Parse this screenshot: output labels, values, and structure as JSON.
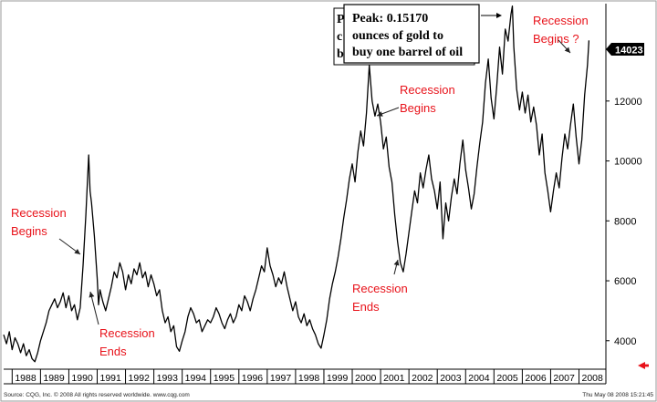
{
  "chart_data": {
    "type": "line",
    "title": "",
    "xlabel": "",
    "ylabel": "",
    "ylim": [
      3050,
      15250
    ],
    "xlim": [
      1987.7,
      2008.95
    ],
    "grid": false,
    "y_ticks": [
      4000,
      6000,
      8000,
      10000,
      12000
    ],
    "x_ticks": [
      "1988",
      "1989",
      "1990",
      "1991",
      "1992",
      "1993",
      "1994",
      "1995",
      "1996",
      "1997",
      "1998",
      "1999",
      "2000",
      "2001",
      "2002",
      "2003",
      "2004",
      "2005",
      "2006",
      "2007",
      "2008"
    ],
    "last_value": "14023",
    "series": [
      {
        "values": [
          [
            1987.7,
            4200
          ],
          [
            1987.8,
            3900
          ],
          [
            1987.9,
            4300
          ],
          [
            1988.0,
            3700
          ],
          [
            1988.1,
            4100
          ],
          [
            1988.2,
            3900
          ],
          [
            1988.3,
            3600
          ],
          [
            1988.4,
            3900
          ],
          [
            1988.5,
            3500
          ],
          [
            1988.6,
            3700
          ],
          [
            1988.7,
            3400
          ],
          [
            1988.8,
            3300
          ],
          [
            1988.9,
            3600
          ],
          [
            1989.0,
            4000
          ],
          [
            1989.1,
            4300
          ],
          [
            1989.2,
            4600
          ],
          [
            1989.3,
            5000
          ],
          [
            1989.4,
            5200
          ],
          [
            1989.5,
            5400
          ],
          [
            1989.6,
            5100
          ],
          [
            1989.7,
            5300
          ],
          [
            1989.8,
            5600
          ],
          [
            1989.9,
            5100
          ],
          [
            1990.0,
            5500
          ],
          [
            1990.1,
            5000
          ],
          [
            1990.2,
            5200
          ],
          [
            1990.3,
            4700
          ],
          [
            1990.4,
            5100
          ],
          [
            1990.5,
            6500
          ],
          [
            1990.6,
            8200
          ],
          [
            1990.7,
            10200
          ],
          [
            1990.75,
            9000
          ],
          [
            1990.8,
            8600
          ],
          [
            1990.9,
            7500
          ],
          [
            1991.0,
            6100
          ],
          [
            1991.05,
            5200
          ],
          [
            1991.1,
            5700
          ],
          [
            1991.2,
            5300
          ],
          [
            1991.3,
            5000
          ],
          [
            1991.4,
            5400
          ],
          [
            1991.5,
            5800
          ],
          [
            1991.6,
            6300
          ],
          [
            1991.7,
            6100
          ],
          [
            1991.8,
            6600
          ],
          [
            1991.9,
            6300
          ],
          [
            1992.0,
            5700
          ],
          [
            1992.1,
            6200
          ],
          [
            1992.2,
            5900
          ],
          [
            1992.3,
            6400
          ],
          [
            1992.4,
            6200
          ],
          [
            1992.5,
            6600
          ],
          [
            1992.6,
            6100
          ],
          [
            1992.7,
            6300
          ],
          [
            1992.8,
            5800
          ],
          [
            1992.9,
            6200
          ],
          [
            1993.0,
            5900
          ],
          [
            1993.1,
            5500
          ],
          [
            1993.2,
            5700
          ],
          [
            1993.3,
            5000
          ],
          [
            1993.4,
            4600
          ],
          [
            1993.5,
            4800
          ],
          [
            1993.6,
            4300
          ],
          [
            1993.7,
            4500
          ],
          [
            1993.8,
            3800
          ],
          [
            1993.9,
            3650
          ],
          [
            1994.0,
            4000
          ],
          [
            1994.1,
            4300
          ],
          [
            1994.2,
            4800
          ],
          [
            1994.3,
            5100
          ],
          [
            1994.4,
            4900
          ],
          [
            1994.5,
            4600
          ],
          [
            1994.6,
            4700
          ],
          [
            1994.7,
            4300
          ],
          [
            1994.8,
            4500
          ],
          [
            1994.9,
            4700
          ],
          [
            1995.0,
            4600
          ],
          [
            1995.1,
            4800
          ],
          [
            1995.2,
            5100
          ],
          [
            1995.3,
            4900
          ],
          [
            1995.4,
            4600
          ],
          [
            1995.5,
            4400
          ],
          [
            1995.6,
            4700
          ],
          [
            1995.7,
            4900
          ],
          [
            1995.8,
            4600
          ],
          [
            1995.9,
            4800
          ],
          [
            1996.0,
            5200
          ],
          [
            1996.1,
            5000
          ],
          [
            1996.2,
            5500
          ],
          [
            1996.3,
            5300
          ],
          [
            1996.4,
            5000
          ],
          [
            1996.5,
            5400
          ],
          [
            1996.6,
            5700
          ],
          [
            1996.7,
            6100
          ],
          [
            1996.8,
            6500
          ],
          [
            1996.9,
            6300
          ],
          [
            1997.0,
            7100
          ],
          [
            1997.1,
            6500
          ],
          [
            1997.2,
            6200
          ],
          [
            1997.3,
            5800
          ],
          [
            1997.4,
            6100
          ],
          [
            1997.5,
            5900
          ],
          [
            1997.6,
            6300
          ],
          [
            1997.7,
            5800
          ],
          [
            1997.8,
            5400
          ],
          [
            1997.9,
            5000
          ],
          [
            1998.0,
            5300
          ],
          [
            1998.1,
            4800
          ],
          [
            1998.2,
            4600
          ],
          [
            1998.3,
            4900
          ],
          [
            1998.4,
            4500
          ],
          [
            1998.5,
            4700
          ],
          [
            1998.6,
            4400
          ],
          [
            1998.7,
            4200
          ],
          [
            1998.8,
            3900
          ],
          [
            1998.9,
            3750
          ],
          [
            1999.0,
            4200
          ],
          [
            1999.1,
            4700
          ],
          [
            1999.2,
            5400
          ],
          [
            1999.3,
            5900
          ],
          [
            1999.4,
            6300
          ],
          [
            1999.5,
            6800
          ],
          [
            1999.6,
            7400
          ],
          [
            1999.7,
            8100
          ],
          [
            1999.8,
            8700
          ],
          [
            1999.9,
            9400
          ],
          [
            2000.0,
            9900
          ],
          [
            2000.1,
            9300
          ],
          [
            2000.2,
            10300
          ],
          [
            2000.3,
            11000
          ],
          [
            2000.4,
            10500
          ],
          [
            2000.5,
            11600
          ],
          [
            2000.6,
            13200
          ],
          [
            2000.7,
            12000
          ],
          [
            2000.8,
            11500
          ],
          [
            2000.9,
            11900
          ],
          [
            2001.0,
            11300
          ],
          [
            2001.1,
            10400
          ],
          [
            2001.2,
            10800
          ],
          [
            2001.3,
            9800
          ],
          [
            2001.4,
            9300
          ],
          [
            2001.5,
            8200
          ],
          [
            2001.6,
            7300
          ],
          [
            2001.7,
            6600
          ],
          [
            2001.8,
            6300
          ],
          [
            2001.9,
            6900
          ],
          [
            2002.0,
            7600
          ],
          [
            2002.1,
            8300
          ],
          [
            2002.2,
            9000
          ],
          [
            2002.3,
            8600
          ],
          [
            2002.4,
            9600
          ],
          [
            2002.5,
            9100
          ],
          [
            2002.6,
            9700
          ],
          [
            2002.7,
            10200
          ],
          [
            2002.8,
            9400
          ],
          [
            2002.9,
            9000
          ],
          [
            2003.0,
            8400
          ],
          [
            2003.1,
            9300
          ],
          [
            2003.2,
            7400
          ],
          [
            2003.3,
            8600
          ],
          [
            2003.4,
            8000
          ],
          [
            2003.5,
            8800
          ],
          [
            2003.6,
            9400
          ],
          [
            2003.7,
            8900
          ],
          [
            2003.8,
            9900
          ],
          [
            2003.9,
            10700
          ],
          [
            2004.0,
            9700
          ],
          [
            2004.1,
            9100
          ],
          [
            2004.2,
            8400
          ],
          [
            2004.3,
            8900
          ],
          [
            2004.4,
            9800
          ],
          [
            2004.5,
            10600
          ],
          [
            2004.6,
            11300
          ],
          [
            2004.7,
            12600
          ],
          [
            2004.8,
            13400
          ],
          [
            2004.9,
            12100
          ],
          [
            2005.0,
            11400
          ],
          [
            2005.1,
            12500
          ],
          [
            2005.2,
            13800
          ],
          [
            2005.3,
            12900
          ],
          [
            2005.4,
            14400
          ],
          [
            2005.5,
            14000
          ],
          [
            2005.6,
            14900
          ],
          [
            2005.65,
            15170
          ],
          [
            2005.7,
            13800
          ],
          [
            2005.8,
            12400
          ],
          [
            2005.9,
            11700
          ],
          [
            2006.0,
            12300
          ],
          [
            2006.1,
            11600
          ],
          [
            2006.2,
            12200
          ],
          [
            2006.3,
            11300
          ],
          [
            2006.4,
            11800
          ],
          [
            2006.5,
            11200
          ],
          [
            2006.6,
            10200
          ],
          [
            2006.7,
            10900
          ],
          [
            2006.8,
            9600
          ],
          [
            2006.9,
            9000
          ],
          [
            2007.0,
            8300
          ],
          [
            2007.1,
            9000
          ],
          [
            2007.2,
            9600
          ],
          [
            2007.3,
            9100
          ],
          [
            2007.4,
            10100
          ],
          [
            2007.5,
            10900
          ],
          [
            2007.6,
            10400
          ],
          [
            2007.7,
            11200
          ],
          [
            2007.8,
            11900
          ],
          [
            2007.9,
            10800
          ],
          [
            2008.0,
            9900
          ],
          [
            2008.1,
            10700
          ],
          [
            2008.2,
            12200
          ],
          [
            2008.3,
            13200
          ],
          [
            2008.35,
            14023
          ]
        ]
      }
    ],
    "annotations": [
      {
        "lines": [
          "Recession",
          "Begins"
        ]
      },
      {
        "lines": [
          "Recession",
          "Ends"
        ]
      },
      {
        "lines": [
          "Recession",
          "Begins"
        ]
      },
      {
        "lines": [
          "Recession",
          "Ends"
        ]
      },
      {
        "lines": [
          "Recession",
          "Begins ?"
        ]
      }
    ],
    "callout": {
      "lines": [
        "Peak: 0.15170",
        "ounces of gold to",
        "buy one barrel of oil"
      ],
      "behind_letters": [
        "P",
        "c",
        "b"
      ]
    },
    "footer": {
      "left": "Source: CQG, Inc. © 2008 All rights reserved worldwide. www.cqg.com",
      "right": "Thu May 08 2008 15:21:45"
    },
    "colors": {
      "line": "#000000",
      "annotation": "#e8121a",
      "last_label_bg": "#000000"
    }
  }
}
